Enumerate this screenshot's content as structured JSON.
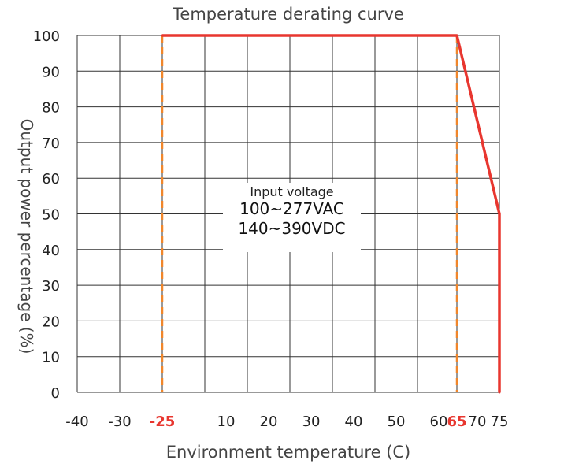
{
  "chart_data": {
    "type": "line",
    "title": "Temperature derating curve",
    "xlabel": "Environment temperature (C)",
    "ylabel": "Output power percentage (%)",
    "x_tick_labels": [
      "-40",
      "-30",
      "-25",
      "10",
      "20",
      "30",
      "40",
      "50",
      "60",
      "65",
      "70",
      "75"
    ],
    "highlighted_x_ticks": [
      "-25",
      "65"
    ],
    "y_ticks": [
      0,
      10,
      20,
      30,
      40,
      50,
      60,
      70,
      80,
      90,
      100
    ],
    "ylim": [
      0,
      100
    ],
    "series": [
      {
        "x": [
          -25,
          65,
          75,
          75
        ],
        "y": [
          100,
          100,
          50,
          0
        ],
        "color": "#e8362f"
      }
    ],
    "reference_lines": [
      {
        "x": -25,
        "style": "dashed",
        "color": "#f0862a"
      },
      {
        "x": 65,
        "style": "dashed",
        "color": "#f0862a"
      }
    ],
    "annotation": {
      "line1": "Input voltage",
      "line2": "100~277VAC",
      "line3": "140~390VDC"
    },
    "grid": true,
    "colors": {
      "curve": "#e8362f",
      "dashed": "#f0862a",
      "grid": "#333333",
      "highlight_tick": "#e8362f"
    }
  }
}
